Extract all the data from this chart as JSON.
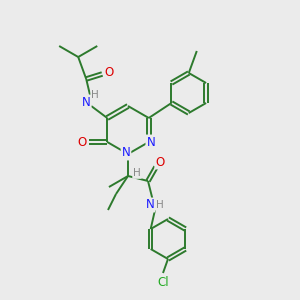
{
  "bg_color": "#ebebeb",
  "bond_color": "#2d7a2d",
  "atom_colors": {
    "N": "#1a1aff",
    "O": "#dd0000",
    "Cl": "#22aa22",
    "H": "#888888"
  },
  "figsize": [
    3.0,
    3.0
  ],
  "dpi": 100,
  "lw": 1.4,
  "fs": 8.5,
  "fs_small": 7.5
}
